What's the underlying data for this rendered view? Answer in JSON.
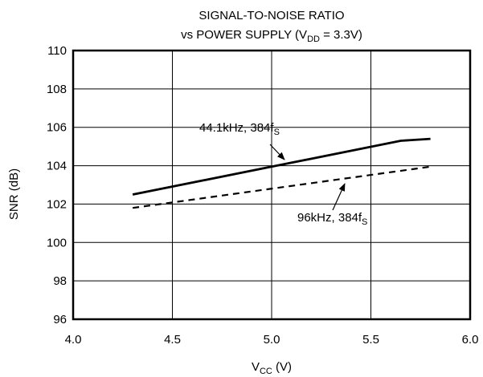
{
  "chart_data": {
    "type": "line",
    "title": {
      "line1": "SIGNAL-TO-NOISE RATIO",
      "line2_prefix": "vs POWER SUPPLY (V",
      "line2_sub": "DD",
      "line2_suffix": " = 3.3V)"
    },
    "xlabel": {
      "main": "V",
      "sub": "CC",
      "suffix": " (V)"
    },
    "ylabel": "SNR (dB)",
    "xlim": [
      4.0,
      6.0
    ],
    "ylim": [
      96,
      110
    ],
    "xticks": [
      4.0,
      4.5,
      5.0,
      5.5,
      6.0
    ],
    "xtick_labels": [
      "4.0",
      "4.5",
      "5.0",
      "5.5",
      "6.0"
    ],
    "yticks": [
      96,
      98,
      100,
      102,
      104,
      106,
      108,
      110
    ],
    "ytick_labels": [
      "96",
      "98",
      "100",
      "102",
      "104",
      "106",
      "108",
      "110"
    ],
    "grid": true,
    "series": [
      {
        "label_main": "44.1kHz, 384f",
        "label_sub": "S",
        "style": "solid",
        "x": [
          4.3,
          5.0,
          5.65,
          5.8
        ],
        "y": [
          102.5,
          103.95,
          105.3,
          105.4
        ]
      },
      {
        "label_main": "96kHz, 384f",
        "label_sub": "S",
        "style": "dashed",
        "x": [
          4.3,
          5.8
        ],
        "y": [
          101.8,
          103.95
        ]
      }
    ]
  }
}
